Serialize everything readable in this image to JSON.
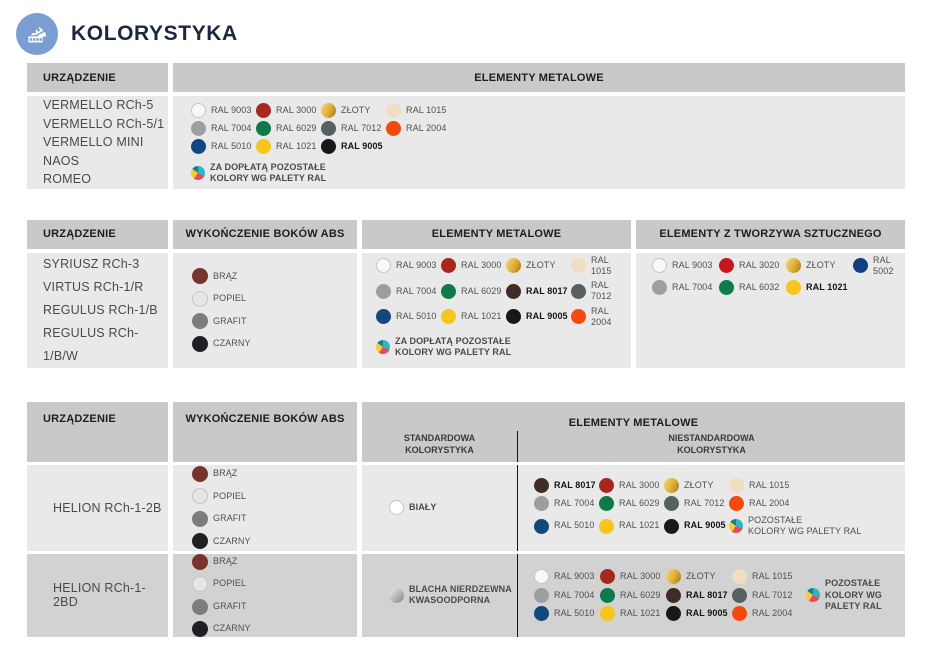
{
  "page": {
    "title": "KOLORYSTYKA"
  },
  "theme": {
    "accent_blue": "#7b9dd2",
    "title_color": "#1b2740",
    "header_bg": "#c9c9c9",
    "body_bg": "#e9e9e9",
    "alt_row_bg": "#d2d2d2"
  },
  "labels": {
    "device_col": "URZĄDZENIE",
    "metal_col": "ELEMENTY METALOWE",
    "abs_col": "WYKOŃCZENIE BOKÓW ABS",
    "plastic_col": "ELEMENTY Z TWORZYWA SZTUCZNEGO",
    "standard_sub": "STANDARDOWA\nKOLORYSTYKA",
    "nonstandard_sub": "NIESTANDARDOWA\nKOLORYSTYKA"
  },
  "abs_colors": [
    {
      "label": "BRĄZ",
      "hex": "#77342c"
    },
    {
      "label": "POPIEL",
      "hex": "#e6e5e3",
      "border": true
    },
    {
      "label": "GRAFIT",
      "hex": "#7d7d7d"
    },
    {
      "label": "CZARNY",
      "hex": "#221f24"
    }
  ],
  "tables": {
    "t1": {
      "devices": [
        "VERMELLO RCh-5",
        "VERMELLO RCh-5/1",
        "VERMELLO MINI",
        "NAOS",
        "ROMEO"
      ],
      "metal": [
        {
          "label": "RAL 9003",
          "hex": "#f8f8f8",
          "border": true
        },
        {
          "label": "RAL 3000",
          "hex": "#a8281e"
        },
        {
          "label": "ZŁOTY",
          "kind": "gold",
          "hex": "#d9a92f"
        },
        {
          "label": "RAL 1015",
          "hex": "#f1ddc1"
        },
        {
          "label": "RAL 7004",
          "hex": "#9c9fa0"
        },
        {
          "label": "RAL 6029",
          "hex": "#0e7a4a"
        },
        {
          "label": "RAL 7012",
          "hex": "#57605e"
        },
        {
          "label": "RAL 2004",
          "hex": "#f44a0e"
        },
        {
          "label": "RAL 5010",
          "hex": "#11497e"
        },
        {
          "label": "RAL 1021",
          "hex": "#f8c51e"
        },
        {
          "label": "RAL 9005",
          "hex": "#17171c",
          "bold": true
        },
        {
          "label": "ZA DOPŁATĄ POZOSTAŁE\nKOLORY WG PALETY RAL",
          "kind": "multi",
          "note": true
        }
      ]
    },
    "t2": {
      "devices": [
        "SYRIUSZ RCh-3",
        "VIRTUS RCh-1/R",
        "REGULUS RCh-1/B",
        "REGULUS RCh-1/B/W"
      ],
      "metal": [
        {
          "label": "RAL 9003",
          "hex": "#f8f8f8",
          "border": true
        },
        {
          "label": "RAL 3000",
          "hex": "#a8281e"
        },
        {
          "label": "ZŁOTY",
          "kind": "gold",
          "hex": "#d9a92f"
        },
        {
          "label": "RAL 1015",
          "hex": "#f1ddc1"
        },
        {
          "label": "RAL 7004",
          "hex": "#9c9fa0"
        },
        {
          "label": "RAL 6029",
          "hex": "#0e7a4a"
        },
        {
          "label": "RAL 8017",
          "hex": "#402b26",
          "bold": true
        },
        {
          "label": "RAL 7012",
          "hex": "#57605e"
        },
        {
          "label": "RAL 5010",
          "hex": "#11497e"
        },
        {
          "label": "RAL 1021",
          "hex": "#f8c51e"
        },
        {
          "label": "RAL 9005",
          "hex": "#17171c",
          "bold": true
        },
        {
          "label": "RAL 2004",
          "hex": "#f44a0e"
        },
        {
          "label": "ZA DOPŁATĄ POZOSTAŁE\nKOLORY WG PALETY RAL",
          "kind": "multi",
          "note": true
        }
      ],
      "plastic": [
        {
          "label": "RAL 9003",
          "hex": "#f8f8f8",
          "border": true
        },
        {
          "label": "RAL 3020",
          "hex": "#c9151c"
        },
        {
          "label": "ZŁOTY",
          "kind": "gold",
          "hex": "#d9a92f"
        },
        {
          "label": "RAL 5002",
          "hex": "#123f7d"
        },
        {
          "label": "RAL 7004",
          "hex": "#9c9fa0"
        },
        {
          "label": "RAL 6032",
          "hex": "#0c7c4b"
        },
        {
          "label": "RAL 1021",
          "hex": "#f8c51e",
          "bold": true
        }
      ]
    },
    "t3": {
      "rows": [
        {
          "name": "HELION RCh-1-2B",
          "standard": [
            {
              "label": "BIAŁY",
              "hex": "#ffffff",
              "border": true
            }
          ],
          "nonstandard": [
            {
              "label": "RAL 8017",
              "hex": "#402b26",
              "bold": true
            },
            {
              "label": "RAL 3000",
              "hex": "#a8281e"
            },
            {
              "label": "ZŁOTY",
              "kind": "gold",
              "hex": "#d9a92f"
            },
            {
              "label": "RAL 1015",
              "hex": "#f1ddc1"
            },
            {
              "label": "RAL 7004",
              "hex": "#9c9fa0"
            },
            {
              "label": "RAL 6029",
              "hex": "#0e7a4a"
            },
            {
              "label": "RAL 7012",
              "hex": "#57605e"
            },
            {
              "label": "RAL 2004",
              "hex": "#f44a0e"
            },
            {
              "label": "RAL 5010",
              "hex": "#11497e"
            },
            {
              "label": "RAL 1021",
              "hex": "#f8c51e"
            },
            {
              "label": "RAL 9005",
              "hex": "#17171c",
              "bold": true
            },
            {
              "label": "POZOSTAŁE\nKOLORY WG PALETY RAL",
              "kind": "multi"
            }
          ]
        },
        {
          "name": "HELION RCh-1-2BD",
          "standard": [
            {
              "label": "BLACHA NIERDZEWNA\nKWASOODPORNA",
              "kind": "steel",
              "hex": "#b5b5b5"
            }
          ],
          "nonstandard": [
            {
              "label": "RAL 9003",
              "hex": "#f8f8f8",
              "border": true
            },
            {
              "label": "RAL 3000",
              "hex": "#a8281e"
            },
            {
              "label": "ZŁOTY",
              "kind": "gold",
              "hex": "#d9a92f"
            },
            {
              "label": "RAL 1015",
              "hex": "#f1ddc1"
            },
            {
              "label": "RAL 7004",
              "hex": "#9c9fa0"
            },
            {
              "label": "RAL 6029",
              "hex": "#0e7a4a"
            },
            {
              "label": "RAL 8017",
              "hex": "#402b26",
              "bold": true
            },
            {
              "label": "RAL 7012",
              "hex": "#57605e"
            },
            {
              "label": "RAL 5010",
              "hex": "#11497e"
            },
            {
              "label": "RAL 1021",
              "hex": "#f8c51e"
            },
            {
              "label": "RAL 9005",
              "hex": "#17171c",
              "bold": true
            },
            {
              "label": "RAL 2004",
              "hex": "#f44a0e"
            }
          ],
          "extra": [
            {
              "label": "POZOSTAŁE\nKOLORY WG\nPALETY RAL",
              "kind": "multi"
            }
          ]
        }
      ]
    }
  }
}
